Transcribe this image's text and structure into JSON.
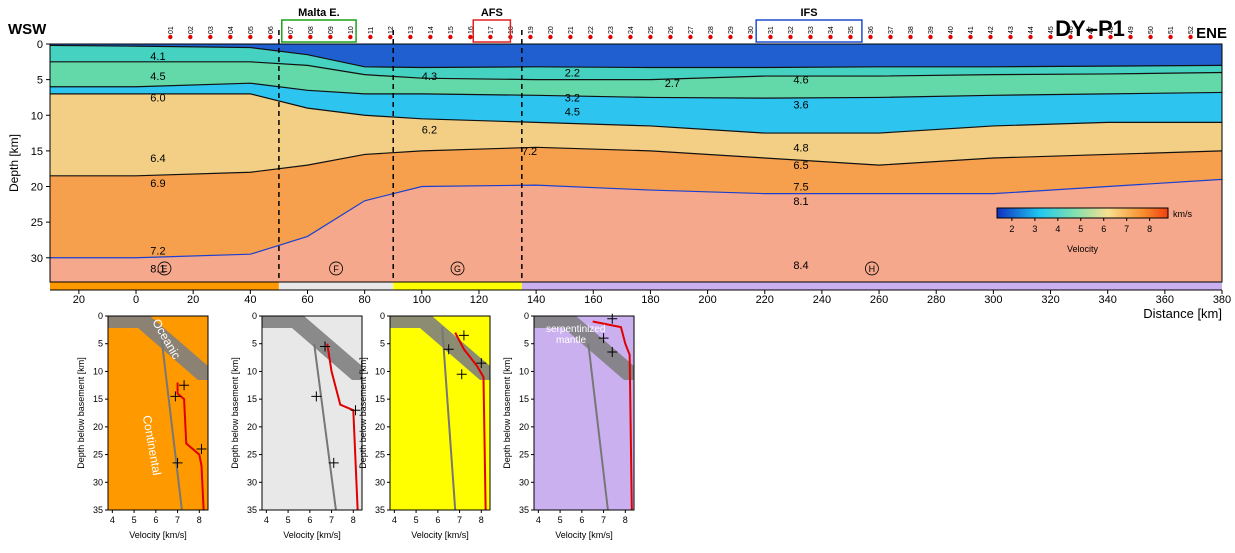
{
  "chart_data": [
    {
      "type": "section",
      "title": "DY–P1",
      "left_label": "WSW",
      "right_label": "ENE",
      "xlabel": "Distance [km]",
      "ylabel": "Depth [km]",
      "xlim": [
        -30.1,
        380
      ],
      "ylim": [
        0,
        33.4
      ],
      "xticks": [
        {
          "value": -20,
          "label": "20"
        },
        0,
        20,
        40,
        60,
        80,
        100,
        120,
        140,
        160,
        180,
        200,
        220,
        240,
        260,
        280,
        300,
        320,
        340,
        360,
        380
      ],
      "yticks": [
        0,
        5,
        10,
        15,
        20,
        25,
        30
      ],
      "boundaries": {
        "x": [
          -30,
          0,
          40,
          60,
          80,
          100,
          140,
          180,
          220,
          260,
          300,
          340,
          380
        ],
        "depths": [
          [
            0.2,
            0.3,
            0.5,
            1.5,
            3.2,
            3.3,
            3.2,
            3.3,
            3.3,
            3.2,
            3.2,
            3.1,
            3.0
          ],
          [
            2.5,
            2.5,
            2.5,
            3.0,
            4.3,
            4.8,
            5.0,
            5.0,
            4.5,
            4.5,
            4.3,
            4.2,
            4.0
          ],
          [
            6.0,
            6.0,
            5.5,
            6.5,
            7.0,
            7.0,
            7.2,
            7.5,
            7.6,
            7.5,
            7.2,
            7.0,
            6.8
          ],
          [
            7.0,
            7.0,
            7.0,
            9.0,
            10.0,
            10.5,
            11.0,
            11.5,
            12.5,
            12.5,
            11.5,
            11.0,
            11.0
          ],
          [
            18.5,
            18.5,
            18.0,
            17.0,
            15.5,
            15.0,
            14.5,
            15.0,
            16.0,
            17.0,
            16.0,
            15.5,
            15.0
          ],
          [
            30.0,
            30.0,
            29.5,
            27.0,
            22.0,
            20.0,
            19.8,
            20.5,
            21.0,
            21.0,
            21.0,
            20.0,
            19.0
          ]
        ]
      },
      "fills": [
        "#1f5fd0",
        "#45d2c0",
        "#63d8a8",
        "#2ec4f0",
        "#f3cf86",
        "#f6a04e",
        "#f5a88c"
      ],
      "velocity_labels": [
        "4.1",
        "4.5",
        "6.0",
        "6.4",
        "6.9",
        "7.2",
        "8.1",
        "4.3",
        "6.2",
        "2.2",
        "2.7",
        "3.2",
        "4.5",
        "7.2",
        "4.6",
        "3.6",
        "4.8",
        "6.5",
        "7.5",
        "8.1",
        "8.4"
      ],
      "stations": {
        "labels": [
          "01",
          "02",
          "03",
          "04",
          "05",
          "06",
          "07",
          "08",
          "09",
          "10",
          "11",
          "12",
          "13",
          "14",
          "15",
          "16",
          "17",
          "18",
          "19",
          "20",
          "21",
          "22",
          "23",
          "24",
          "25",
          "26",
          "27",
          "28",
          "29",
          "30",
          "31",
          "32",
          "33",
          "34",
          "35",
          "36",
          "37",
          "38",
          "39",
          "40",
          "41",
          "42",
          "43",
          "44",
          "45",
          "46",
          "47",
          "48",
          "49",
          "50",
          "51",
          "52"
        ],
        "x": [
          12,
          19,
          26,
          33,
          40,
          47,
          54,
          61,
          68,
          75,
          82,
          89,
          96,
          103,
          110,
          117,
          124,
          131,
          138,
          145,
          152,
          159,
          166,
          173,
          180,
          187,
          194,
          201,
          208,
          215,
          222,
          229,
          236,
          243,
          250,
          257,
          264,
          271,
          278,
          285,
          292,
          299,
          306,
          313,
          320,
          327,
          334,
          341,
          348,
          355,
          362,
          369
        ],
        "color": "#e00000"
      },
      "regions": [
        {
          "label": "Malta E.",
          "xlim": [
            51,
            77
          ],
          "color": "#1aa31a"
        },
        {
          "label": "AFS",
          "xlim": [
            118,
            131
          ],
          "color": "#e02020"
        },
        {
          "label": "IFS",
          "xlim": [
            217,
            254
          ],
          "color": "#1f4fd0"
        }
      ],
      "domain_boundaries": [
        50,
        90,
        135
      ],
      "domains": [
        {
          "label": "E",
          "xlim": [
            -30.1,
            50
          ],
          "color": "#ff9900"
        },
        {
          "label": "F",
          "xlim": [
            50,
            90
          ],
          "color": "#e8e8e8"
        },
        {
          "label": "G",
          "xlim": [
            90,
            135
          ],
          "color": "#ffff00"
        },
        {
          "label": "H",
          "xlim": [
            135,
            380
          ],
          "color": "#cbb0ef"
        }
      ],
      "colorbar": {
        "label": "Velocity",
        "unit": "km/s",
        "clim": [
          1.35,
          8.8
        ],
        "ticks": [
          2,
          3,
          4,
          5,
          6,
          7,
          8
        ]
      }
    },
    {
      "type": "profile",
      "xlabel": "Velocity [km/s]",
      "ylabel": "Depth below basement [km]",
      "xlim": [
        3.8,
        8.4
      ],
      "ylim": [
        0,
        35
      ],
      "xticks": [
        4,
        5,
        6,
        7,
        8
      ],
      "yticks": [
        0,
        5,
        10,
        15,
        20,
        25,
        30,
        35
      ],
      "color": "#ff9900",
      "reference": {
        "velocity": [
          6.2,
          7.2
        ],
        "depth": [
          2,
          35
        ]
      },
      "profile": {
        "velocity": [
          7.0,
          7.0,
          7.3,
          7.4,
          8.0,
          8.1,
          8.2
        ],
        "depth": [
          12,
          14,
          15,
          23,
          25,
          27,
          35
        ]
      },
      "picks": {
        "velocity": [
          7.3,
          6.9,
          8.1,
          7.0
        ],
        "depth": [
          12.5,
          14.5,
          24,
          26.5
        ]
      },
      "annotations": [
        "Oceanic",
        "Continental"
      ]
    },
    {
      "type": "profile",
      "xlabel": "Velocity [km/s]",
      "ylabel": "Depth below basement [km]",
      "xlim": [
        3.8,
        8.4
      ],
      "ylim": [
        0,
        35
      ],
      "xticks": [
        4,
        5,
        6,
        7,
        8
      ],
      "yticks": [
        0,
        5,
        10,
        15,
        20,
        25,
        30,
        35
      ],
      "color": "#e8e8e8",
      "reference": {
        "velocity": [
          6.2,
          7.2
        ],
        "depth": [
          5,
          35
        ]
      },
      "profile": {
        "velocity": [
          6.8,
          7.0,
          7.4,
          8.0,
          8.2
        ],
        "depth": [
          5,
          10,
          16,
          17,
          35
        ]
      },
      "picks": {
        "velocity": [
          6.7,
          6.3,
          8.1,
          7.1
        ],
        "depth": [
          5.5,
          14.5,
          17,
          26.5
        ]
      },
      "annotations": []
    },
    {
      "type": "profile",
      "xlabel": "Velocity [km/s]",
      "ylabel": "Depth below basement [km]",
      "xlim": [
        3.8,
        8.4
      ],
      "ylim": [
        0,
        35
      ],
      "xticks": [
        4,
        5,
        6,
        7,
        8
      ],
      "yticks": [
        0,
        5,
        10,
        15,
        20,
        25,
        30,
        35
      ],
      "color": "#ffff00",
      "reference": {
        "velocity": [
          6.2,
          6.8
        ],
        "depth": [
          2,
          35
        ]
      },
      "profile": {
        "velocity": [
          6.8,
          7.2,
          7.8,
          8.1,
          8.2
        ],
        "depth": [
          3,
          6,
          9,
          11,
          35
        ]
      },
      "picks": {
        "velocity": [
          7.2,
          6.5,
          8.0,
          7.1
        ],
        "depth": [
          3.5,
          6,
          8.5,
          10.5
        ]
      },
      "annotations": []
    },
    {
      "type": "profile",
      "xlabel": "Velocity [km/s]",
      "ylabel": "Depth below basement [km]",
      "xlim": [
        3.8,
        8.4
      ],
      "ylim": [
        0,
        35
      ],
      "xticks": [
        4,
        5,
        6,
        7,
        8
      ],
      "yticks": [
        0,
        5,
        10,
        15,
        20,
        25,
        30,
        35
      ],
      "color": "#cbb0ef",
      "reference": {
        "velocity": [
          6.3,
          7.2
        ],
        "depth": [
          5,
          35
        ]
      },
      "profile": {
        "velocity": [
          6.5,
          7.8,
          8.0,
          8.2,
          8.3
        ],
        "depth": [
          1,
          2,
          5,
          7,
          35
        ]
      },
      "picks": {
        "velocity": [
          7.4,
          7.0,
          7.4
        ],
        "depth": [
          0.5,
          4,
          6.5
        ]
      },
      "annotations": [
        "serpentinized",
        "mantle"
      ]
    }
  ]
}
